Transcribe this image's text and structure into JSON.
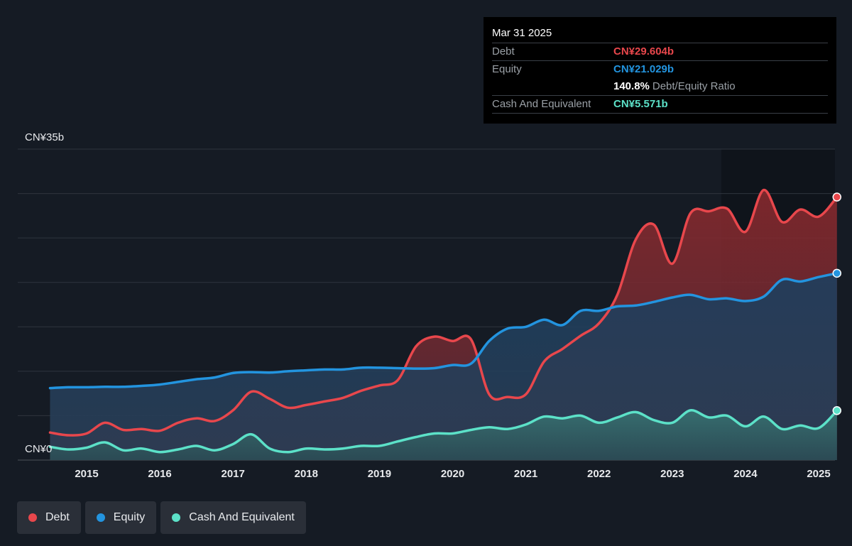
{
  "tooltip": {
    "date": "Mar 31 2025",
    "rows": [
      {
        "label": "Debt",
        "value": "CN¥29.604b",
        "color": "#e8474c"
      },
      {
        "label": "Equity",
        "value": "CN¥21.029b",
        "color": "#2394df"
      },
      {
        "label": "",
        "value": "140.8%",
        "suffix": "Debt/Equity Ratio",
        "color": "#ffffff"
      },
      {
        "label": "Cash And Equivalent",
        "value": "CN¥5.571b",
        "color": "#5ce1c8"
      }
    ]
  },
  "legend": [
    {
      "label": "Debt",
      "color": "#e8474c"
    },
    {
      "label": "Equity",
      "color": "#2394df"
    },
    {
      "label": "Cash And Equivalent",
      "color": "#5ce1c8"
    }
  ],
  "chart_data": {
    "type": "area",
    "ylim": [
      0,
      35
    ],
    "y_tick_labels": [
      {
        "value": 35,
        "label": "CN¥35b"
      },
      {
        "value": 0,
        "label": "CN¥0"
      }
    ],
    "x_ticks": [
      2015,
      2016,
      2017,
      2018,
      2019,
      2020,
      2021,
      2022,
      2023,
      2024,
      2025
    ],
    "x_range": [
      2014.5,
      2025.25
    ],
    "series": [
      {
        "name": "Debt",
        "color": "#e8474c",
        "x": [
          2014.5,
          2014.75,
          2015.0,
          2015.25,
          2015.5,
          2015.75,
          2016.0,
          2016.25,
          2016.5,
          2016.75,
          2017.0,
          2017.25,
          2017.5,
          2017.75,
          2018.0,
          2018.25,
          2018.5,
          2018.75,
          2019.0,
          2019.25,
          2019.5,
          2019.75,
          2020.0,
          2020.25,
          2020.5,
          2020.75,
          2021.0,
          2021.25,
          2021.5,
          2021.75,
          2022.0,
          2022.25,
          2022.5,
          2022.75,
          2023.0,
          2023.25,
          2023.5,
          2023.75,
          2024.0,
          2024.25,
          2024.5,
          2024.75,
          2025.0,
          2025.25
        ],
        "values": [
          3.1,
          2.8,
          3.0,
          4.2,
          3.4,
          3.5,
          3.3,
          4.2,
          4.7,
          4.4,
          5.6,
          7.7,
          6.9,
          5.9,
          6.2,
          6.6,
          7.0,
          7.8,
          8.4,
          9.0,
          12.8,
          13.9,
          13.4,
          13.6,
          7.4,
          7.1,
          7.4,
          11.1,
          12.5,
          14.0,
          15.4,
          18.6,
          24.8,
          26.5,
          22.1,
          27.8,
          28.0,
          28.3,
          25.7,
          30.4,
          26.8,
          28.2,
          27.4,
          29.604
        ]
      },
      {
        "name": "Equity",
        "color": "#2394df",
        "x": [
          2014.5,
          2014.75,
          2015.0,
          2015.25,
          2015.5,
          2015.75,
          2016.0,
          2016.25,
          2016.5,
          2016.75,
          2017.0,
          2017.25,
          2017.5,
          2017.75,
          2018.0,
          2018.25,
          2018.5,
          2018.75,
          2019.0,
          2019.25,
          2019.5,
          2019.75,
          2020.0,
          2020.25,
          2020.5,
          2020.75,
          2021.0,
          2021.25,
          2021.5,
          2021.75,
          2022.0,
          2022.25,
          2022.5,
          2022.75,
          2023.0,
          2023.25,
          2023.5,
          2023.75,
          2024.0,
          2024.25,
          2024.5,
          2024.75,
          2025.0,
          2025.25
        ],
        "values": [
          8.1,
          8.2,
          8.2,
          8.25,
          8.25,
          8.35,
          8.5,
          8.8,
          9.1,
          9.3,
          9.8,
          9.9,
          9.85,
          10.0,
          10.1,
          10.2,
          10.2,
          10.4,
          10.4,
          10.35,
          10.3,
          10.35,
          10.7,
          10.85,
          13.4,
          14.8,
          15.0,
          15.8,
          15.2,
          16.8,
          16.8,
          17.3,
          17.4,
          17.8,
          18.3,
          18.6,
          18.1,
          18.2,
          17.9,
          18.4,
          20.3,
          20.1,
          20.6,
          21.029
        ]
      },
      {
        "name": "Cash And Equivalent",
        "color": "#5ce1c8",
        "x": [
          2014.5,
          2014.75,
          2015.0,
          2015.25,
          2015.5,
          2015.75,
          2016.0,
          2016.25,
          2016.5,
          2016.75,
          2017.0,
          2017.25,
          2017.5,
          2017.75,
          2018.0,
          2018.25,
          2018.5,
          2018.75,
          2019.0,
          2019.25,
          2019.5,
          2019.75,
          2020.0,
          2020.25,
          2020.5,
          2020.75,
          2021.0,
          2021.25,
          2021.5,
          2021.75,
          2022.0,
          2022.25,
          2022.5,
          2022.75,
          2023.0,
          2023.25,
          2023.5,
          2023.75,
          2024.0,
          2024.25,
          2024.5,
          2024.75,
          2025.0,
          2025.25
        ],
        "values": [
          1.5,
          1.2,
          1.4,
          2.0,
          1.1,
          1.3,
          0.9,
          1.2,
          1.6,
          1.1,
          1.8,
          2.9,
          1.3,
          0.9,
          1.3,
          1.2,
          1.3,
          1.6,
          1.6,
          2.1,
          2.6,
          3.0,
          3.0,
          3.4,
          3.7,
          3.5,
          4.0,
          4.9,
          4.7,
          5.0,
          4.2,
          4.8,
          5.4,
          4.5,
          4.2,
          5.6,
          4.8,
          5.0,
          3.8,
          4.9,
          3.5,
          3.9,
          3.6,
          5.571
        ]
      }
    ]
  }
}
